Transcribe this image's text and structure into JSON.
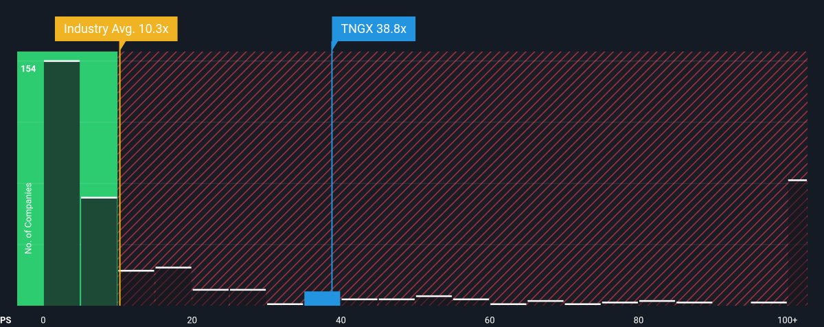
{
  "chart_data": {
    "type": "histogram",
    "x_label": "PS",
    "y_label": "No. of Companies",
    "bins": [
      0,
      5,
      10,
      15,
      20,
      25,
      30,
      35,
      40,
      45,
      50,
      55,
      60,
      65,
      70,
      75,
      80,
      85,
      90,
      95,
      100,
      102.7
    ],
    "values": [
      154,
      68,
      22,
      24,
      10,
      10,
      1,
      9,
      4,
      4,
      6,
      4,
      1,
      3,
      1,
      2,
      3,
      2,
      0,
      2,
      79
    ],
    "highlight_bin": 7,
    "xlim": [
      -3.5,
      102.7
    ],
    "ylim": [
      0,
      160
    ],
    "xticks": [
      0,
      20,
      40,
      60,
      80,
      {
        "value": 100,
        "label": "100+"
      }
    ],
    "yticks": [
      154
    ],
    "grid": true,
    "colors": {
      "below": "#2ecc71",
      "below_bar": "#1d4a37",
      "above_hatch": "#a8323f",
      "highlight": "#2394df"
    },
    "annotations": [
      {
        "label": "Industry Avg. 10.3x",
        "value": 10.3,
        "color": "#f0b323"
      },
      {
        "label": "TNGX 38.8x",
        "value": 38.8,
        "color": "#2394df"
      }
    ]
  }
}
